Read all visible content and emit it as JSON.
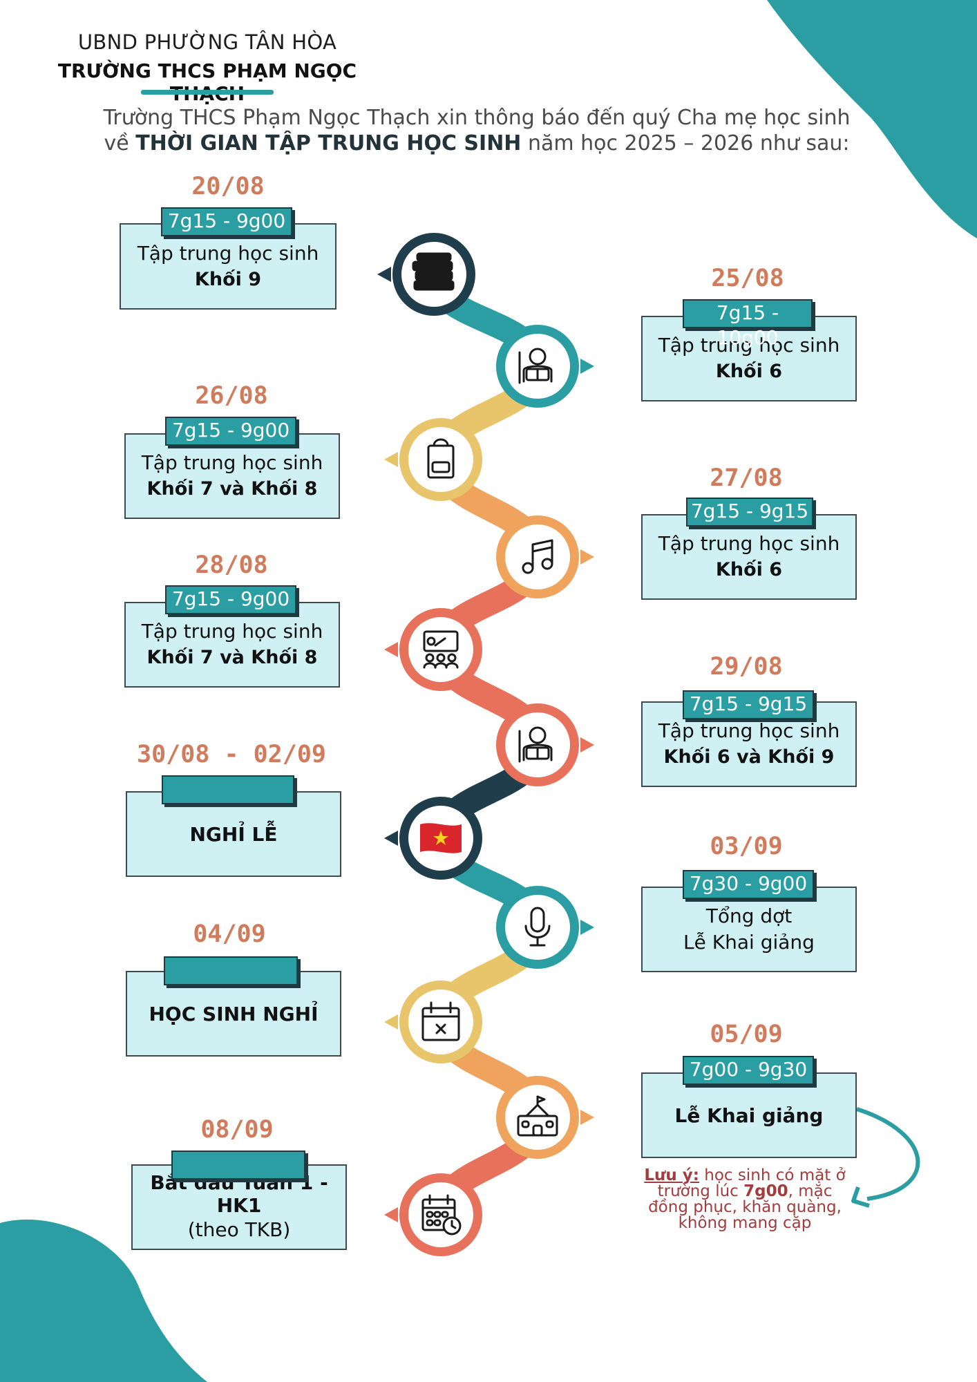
{
  "header": {
    "line1": "UBND PHƯỜNG TÂN HÒA",
    "line2": "TRƯỜNG THCS PHẠM NGỌC THẠCH"
  },
  "intro": {
    "part1": "Trường THCS Phạm Ngọc Thạch xin thông báo đến quý Cha mẹ học sinh",
    "part2": "về ",
    "emphasis": "THỜI GIAN TẬP TRUNG HỌC SINH",
    "part3": " năm học 2025 – 2026 như sau:"
  },
  "events": [
    {
      "date": "20/08",
      "time": "7g15 - 9g00",
      "line1": "Tập trung học sinh",
      "line2": "Khối 9",
      "icon": "books-icon",
      "color": "#1f3d4a"
    },
    {
      "date": "25/08",
      "time": "7g15 - 10g00",
      "line1": "Tập trung học sinh",
      "line2": "Khối 6",
      "icon": "student-reading-icon",
      "color": "#2a9ea2"
    },
    {
      "date": "26/08",
      "time": "7g15 - 9g00",
      "line1": "Tập trung học sinh",
      "line2": "Khối 7 và Khối 8",
      "icon": "backpack-icon",
      "color": "#e8c46a"
    },
    {
      "date": "27/08",
      "time": "7g15 - 9g15",
      "line1": "Tập trung học sinh",
      "line2": "Khối 6",
      "icon": "music-note-icon",
      "color": "#efa35c"
    },
    {
      "date": "28/08",
      "time": "7g15 - 9g00",
      "line1": "Tập trung học sinh",
      "line2": "Khối 7 và Khối 8",
      "icon": "teacher-class-icon",
      "color": "#e7715a"
    },
    {
      "date": "29/08",
      "time": "7g15 - 9g15",
      "line1": "Tập trung học sinh",
      "line2": "Khối 6 và Khối 9",
      "icon": "student-reading-icon",
      "color": "#e7715a"
    },
    {
      "date": "30/08 - 02/09",
      "time": "",
      "line1": "NGHỈ LỄ",
      "line2": "",
      "icon": "vietnam-flag-icon",
      "color": "#1f3d4a"
    },
    {
      "date": "03/09",
      "time": "7g30 - 9g00",
      "line1": "Tổng dợt",
      "line2": "Lễ Khai giảng",
      "icon": "microphone-icon",
      "color": "#2a9ea2"
    },
    {
      "date": "04/09",
      "time": "",
      "line1": "HỌC SINH NGHỈ",
      "line2": "",
      "icon": "calendar-cancel-icon",
      "color": "#e8c46a"
    },
    {
      "date": "05/09",
      "time": "7g00 - 9g30",
      "line1": "Lễ Khai giảng",
      "line2": "",
      "icon": "school-building-icon",
      "color": "#efa35c"
    },
    {
      "date": "08/09",
      "time": "",
      "line1": "Bắt đầu Tuần 1 - HK1",
      "line2": "(theo TKB)",
      "icon": "calendar-clock-icon",
      "color": "#e7715a"
    }
  ],
  "note": {
    "label": "Lưu ý:",
    "text1": " học sinh có mặt ở trường lúc ",
    "time": "7g00",
    "text2": ", mặc đồng phục, khăn quàng, không mang cặp"
  }
}
